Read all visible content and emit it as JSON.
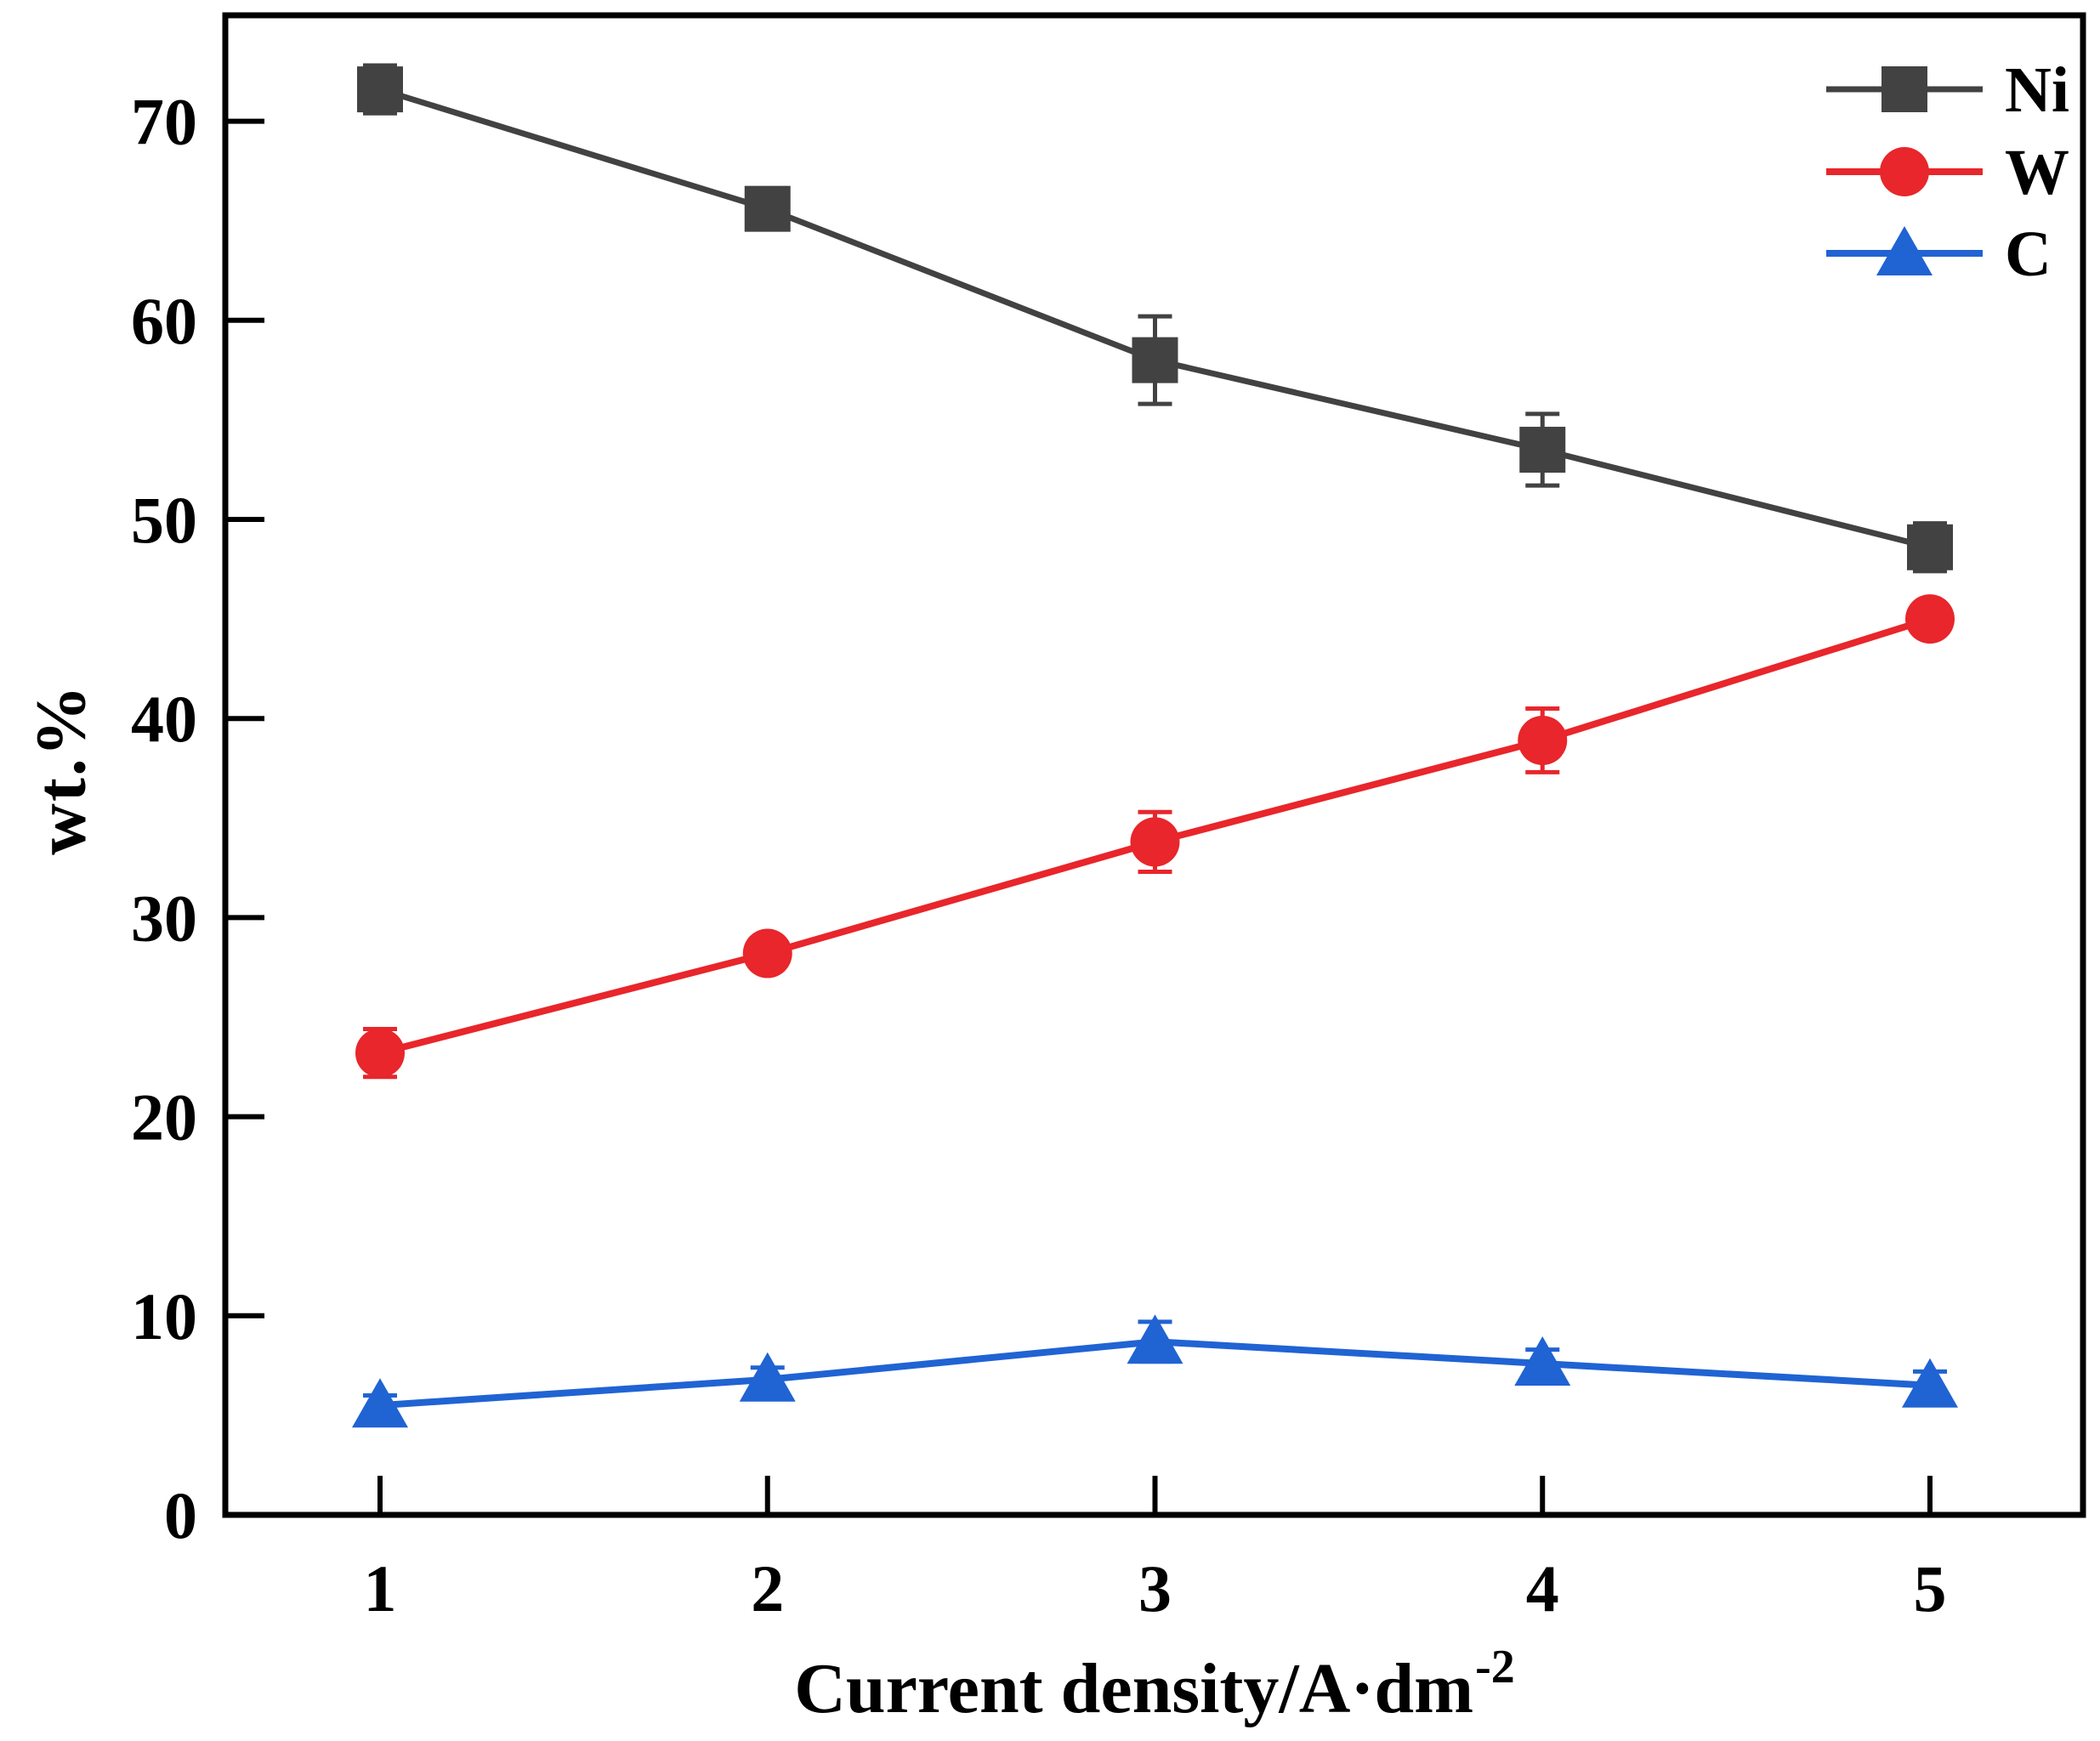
{
  "figure": {
    "background": "#ffffff",
    "frame_color": "#000000"
  },
  "chart_data": {
    "type": "line",
    "title": "",
    "xlabel_main": "Current density/A·dm",
    "xlabel_sup": "-2",
    "ylabel": "wt.%",
    "x": [
      1,
      2,
      3,
      4,
      5
    ],
    "xticks": [
      "1",
      "2",
      "3",
      "4",
      "5"
    ],
    "ytick_values": [
      0,
      10,
      20,
      30,
      40,
      50,
      60,
      70
    ],
    "yticks": [
      "0",
      "10",
      "20",
      "30",
      "40",
      "50",
      "60",
      "70"
    ],
    "xlim": [
      0.6,
      5.4
    ],
    "ylim": [
      0,
      75.3
    ],
    "grid": false,
    "legend_position": "upper-right-inside",
    "series": [
      {
        "name": "Ni",
        "marker": "square",
        "color": "#424242",
        "values": [
          71.6,
          65.6,
          58.0,
          53.5,
          48.6
        ],
        "errors": [
          1.2,
          0.8,
          2.2,
          1.8,
          1.2
        ]
      },
      {
        "name": "W",
        "marker": "circle",
        "color": "#e8262b",
        "values": [
          23.2,
          28.2,
          33.8,
          38.9,
          45.0
        ],
        "errors": [
          1.2,
          0.8,
          1.5,
          1.6,
          0.8
        ]
      },
      {
        "name": "C",
        "marker": "triangle",
        "color": "#2063d3",
        "values": [
          5.5,
          6.8,
          8.7,
          7.6,
          6.5
        ],
        "errors": [
          0.5,
          0.6,
          1.0,
          0.7,
          0.7
        ]
      }
    ]
  }
}
